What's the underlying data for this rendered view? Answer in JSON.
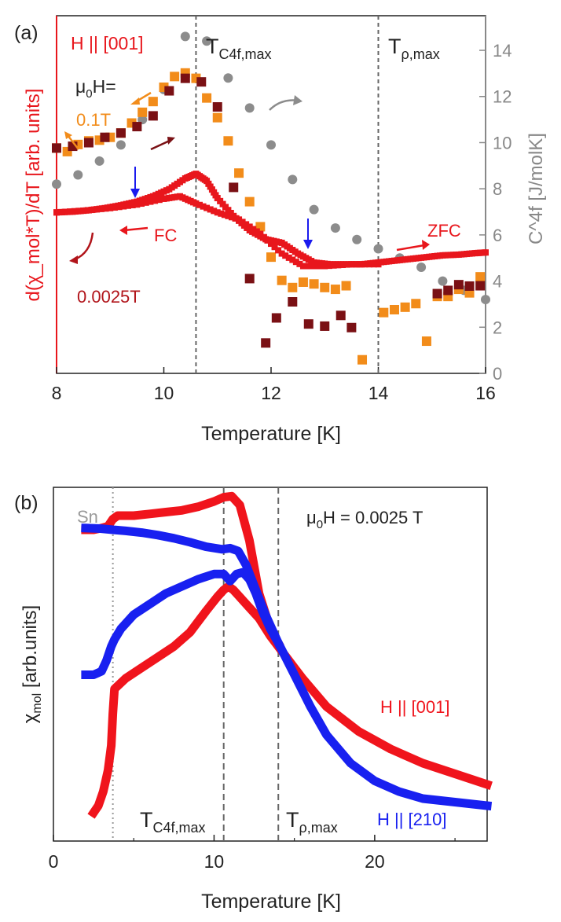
{
  "chart_data": [
    {
      "panel_label": "(a)",
      "type": "scatter",
      "xlabel": "Temperature [K]",
      "ylabel_left": "d(χ_mol*T)/dT [arb. units]",
      "ylabel_right": "C^4f [J/molK]",
      "xlim": [
        8,
        16
      ],
      "xticks": [
        8,
        10,
        12,
        14,
        16
      ],
      "y2lim": [
        0,
        15.5
      ],
      "y2ticks": [
        0,
        2,
        4,
        6,
        8,
        10,
        12,
        14
      ],
      "ylim": [
        0,
        1
      ],
      "grid": false,
      "vlines": [
        {
          "x": 10.6,
          "label_main": "T",
          "label_sub": "C4f,max"
        },
        {
          "x": 14.0,
          "label_main": "T",
          "label_sub": "ρ,max"
        }
      ],
      "annotations": {
        "field_dir": "H || [001]",
        "mu0h_main": "μ",
        "mu0h_sub": "0",
        "mu0h_rest": "H=",
        "field_high": "0.1T",
        "field_low": "0.0025T",
        "fc": "FC",
        "zfc": "ZFC"
      },
      "series": [
        {
          "name": "C4f",
          "axis": "right",
          "color": "#8c8c8c",
          "x": [
            8.0,
            8.4,
            8.8,
            9.2,
            9.6,
            10.0,
            10.4,
            10.8,
            11.2,
            11.6,
            12.0,
            12.4,
            12.8,
            13.2,
            13.6,
            14.0,
            14.4,
            14.8,
            15.2,
            15.6,
            16.0
          ],
          "y": [
            8.2,
            8.6,
            9.2,
            9.9,
            11.0,
            12.3,
            14.6,
            14.4,
            12.8,
            11.5,
            9.9,
            8.4,
            7.1,
            6.3,
            5.8,
            5.4,
            5.0,
            4.6,
            4.0,
            3.6,
            3.2
          ]
        },
        {
          "name": "0.1T ZFC",
          "axis": "left",
          "color": "#f28c1a",
          "x": [
            8.0,
            8.2,
            8.4,
            8.6,
            8.8,
            9.0,
            9.2,
            9.4,
            9.6,
            9.8,
            10.0,
            10.2,
            10.4,
            10.6,
            10.8,
            11.0,
            11.2,
            11.4,
            11.6,
            11.8,
            12.0,
            12.2,
            12.4,
            12.6,
            12.8,
            13.0,
            13.2,
            13.4,
            13.7,
            14.1,
            14.3,
            14.5,
            14.7,
            14.9,
            15.1,
            15.3,
            15.5,
            15.7,
            15.9
          ],
          "y": [
            0.63,
            0.62,
            0.64,
            0.65,
            0.652,
            0.66,
            0.672,
            0.7,
            0.73,
            0.76,
            0.8,
            0.83,
            0.84,
            0.825,
            0.77,
            0.715,
            0.65,
            0.56,
            0.48,
            0.41,
            0.325,
            0.26,
            0.24,
            0.255,
            0.25,
            0.24,
            0.235,
            0.245,
            0.038,
            0.17,
            0.178,
            0.185,
            0.195,
            0.09,
            0.215,
            0.215,
            0.235,
            0.225,
            0.27
          ]
        },
        {
          "name": "0.1T FC",
          "axis": "left",
          "color": "#7a1014",
          "x": [
            8.0,
            8.3,
            8.6,
            8.9,
            9.2,
            9.5,
            9.8,
            10.1,
            10.4,
            10.7,
            11.0,
            11.3,
            11.6,
            11.9,
            12.1,
            12.4,
            12.7,
            13.0,
            13.3,
            13.5,
            15.1,
            15.3,
            15.5,
            15.7,
            15.9
          ],
          "y": [
            0.63,
            0.635,
            0.645,
            0.66,
            0.672,
            0.69,
            0.72,
            0.79,
            0.825,
            0.815,
            0.745,
            0.52,
            0.265,
            0.085,
            0.155,
            0.2,
            0.138,
            0.132,
            0.162,
            0.128,
            0.223,
            0.232,
            0.248,
            0.244,
            0.245
          ]
        },
        {
          "name": "0.0025T ZFC",
          "axis": "left",
          "color": "#e8161c",
          "x": [
            8.0,
            8.3,
            8.6,
            8.9,
            9.2,
            9.5,
            9.8,
            10.1,
            10.4,
            10.6,
            10.8,
            11.0,
            11.3,
            11.6,
            11.9,
            12.2,
            12.5,
            12.8,
            13.1,
            13.4,
            13.7,
            14.0,
            14.3,
            14.6,
            14.9,
            15.2,
            15.5,
            15.8,
            16.0
          ],
          "y": [
            0.45,
            0.452,
            0.456,
            0.462,
            0.47,
            0.48,
            0.495,
            0.515,
            0.545,
            0.558,
            0.538,
            0.49,
            0.44,
            0.4,
            0.375,
            0.365,
            0.335,
            0.31,
            0.305,
            0.305,
            0.305,
            0.31,
            0.315,
            0.32,
            0.325,
            0.33,
            0.332,
            0.336,
            0.338
          ]
        },
        {
          "name": "0.0025T FC",
          "axis": "left",
          "color": "#e8161c",
          "x": [
            8.0,
            8.5,
            9.0,
            9.5,
            10.0,
            10.3,
            10.6,
            11.0,
            11.4,
            11.8,
            12.2,
            12.6,
            13.0,
            13.5,
            14.0
          ],
          "y": [
            0.45,
            0.455,
            0.462,
            0.472,
            0.488,
            0.495,
            0.475,
            0.45,
            0.43,
            0.39,
            0.335,
            0.3,
            0.3,
            0.305,
            0.305
          ]
        }
      ]
    },
    {
      "panel_label": "(b)",
      "type": "scatter",
      "xlabel": "Temperature [K]",
      "ylabel_main": "χ",
      "ylabel_sub": "mol",
      "ylabel_rest": " [arb.units]",
      "xlim": [
        0,
        27
      ],
      "xticks": [
        0,
        10,
        20
      ],
      "ylim": [
        0,
        1
      ],
      "grid": false,
      "vlines": [
        {
          "x": 3.7,
          "style": "dotted",
          "label": "Sn"
        },
        {
          "x": 10.6,
          "style": "dashed",
          "label_main": "T",
          "label_sub": "C4f,max"
        },
        {
          "x": 14.0,
          "style": "dashed",
          "label_main": "T",
          "label_sub": "ρ,max"
        }
      ],
      "annotations": {
        "field_main": "μ",
        "field_sub": "0",
        "field_rest": "H = 0.0025 T"
      },
      "series": [
        {
          "name": "H || [001]",
          "color": "#f0141c",
          "curves": [
            {
              "x": [
                2.5,
                2.8,
                3.1,
                3.4,
                3.6,
                3.7,
                3.8,
                4.5,
                5.5,
                6.5,
                7.5,
                8.5,
                9.5,
                10.2,
                10.6,
                10.9,
                11.2,
                11.6,
                12.2,
                12.8,
                13.5,
                14.5,
                15.5,
                17.0,
                19.0,
                21.0,
                23.0,
                25.0,
                27.0
              ],
              "y": [
                0.08,
                0.1,
                0.14,
                0.2,
                0.27,
                0.36,
                0.43,
                0.46,
                0.49,
                0.52,
                0.55,
                0.59,
                0.65,
                0.69,
                0.71,
                0.72,
                0.71,
                0.69,
                0.66,
                0.63,
                0.58,
                0.52,
                0.46,
                0.38,
                0.31,
                0.26,
                0.22,
                0.19,
                0.16
              ]
            },
            {
              "x": [
                2.0,
                2.5,
                3.0,
                3.4,
                3.7,
                4.0,
                5.0,
                6.0,
                7.0,
                8.0,
                9.0,
                10.0,
                10.6,
                11.1,
                11.6,
                12.2,
                12.8,
                13.5,
                14.0
              ],
              "y": [
                0.88,
                0.88,
                0.885,
                0.89,
                0.91,
                0.92,
                0.92,
                0.925,
                0.93,
                0.935,
                0.945,
                0.96,
                0.972,
                0.975,
                0.95,
                0.85,
                0.7,
                0.6,
                0.56
              ]
            }
          ]
        },
        {
          "name": "H || [210]",
          "color": "#1820f0",
          "curves": [
            {
              "x": [
                2.0,
                2.5,
                3.0,
                3.3,
                3.6,
                3.8,
                4.2,
                5.0,
                6.0,
                7.0,
                8.0,
                9.0,
                10.0,
                10.6,
                11.0,
                11.4,
                11.8,
                12.2,
                12.6,
                13.0,
                13.5,
                14.0,
                15.0,
                16.0,
                17.0,
                18.5,
                20.0,
                21.5,
                23.0,
                25.0,
                27.0
              ],
              "y": [
                0.47,
                0.47,
                0.48,
                0.51,
                0.55,
                0.57,
                0.6,
                0.64,
                0.67,
                0.7,
                0.72,
                0.74,
                0.755,
                0.755,
                0.735,
                0.755,
                0.76,
                0.74,
                0.7,
                0.65,
                0.6,
                0.56,
                0.47,
                0.38,
                0.3,
                0.22,
                0.17,
                0.14,
                0.12,
                0.11,
                0.1
              ]
            },
            {
              "x": [
                2.0,
                3.0,
                3.7,
                4.5,
                5.5,
                6.5,
                7.5,
                8.5,
                9.5,
                10.5,
                11.0,
                11.5,
                12.0,
                12.6,
                13.2,
                14.0
              ],
              "y": [
                0.885,
                0.883,
                0.88,
                0.877,
                0.872,
                0.865,
                0.856,
                0.845,
                0.832,
                0.825,
                0.828,
                0.82,
                0.78,
                0.71,
                0.64,
                0.56
              ]
            }
          ]
        }
      ]
    }
  ],
  "labels": {
    "h_001": "H || [001]",
    "h_210": "H || [210]"
  }
}
